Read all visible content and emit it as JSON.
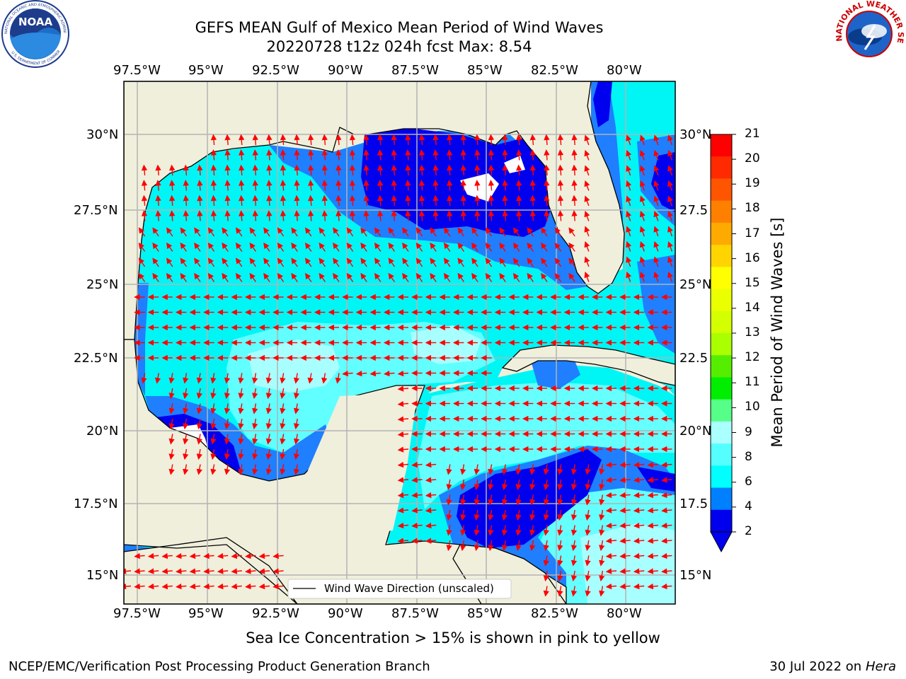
{
  "title_line1": "GEFS MEAN Gulf of Mexico Mean Period of Wind Waves",
  "title_line2": "20220728 t12z 024h fcst   Max: 8.54",
  "top_lon_labels": [
    "97.5°W",
    "95°W",
    "92.5°W",
    "90°W",
    "87.5°W",
    "85°W",
    "82.5°W",
    "80°W"
  ],
  "bottom_lon_labels": [
    "97.5°W",
    "95°W",
    "92.5°W",
    "90°W",
    "87.5°W",
    "85°W",
    "82.5°W",
    "80°W"
  ],
  "left_lat_labels": [
    "30°N",
    "27.5°N",
    "25°N",
    "22.5°N",
    "20°N",
    "17.5°N",
    "15°N"
  ],
  "right_lat_labels": [
    "30°N",
    "27.5",
    "25°N",
    "22.5",
    "20°N",
    "17.5",
    "15°N"
  ],
  "legend_label": "Wind Wave Direction (unscaled)",
  "colorbar": {
    "label": "Mean Period of Wind Waves [s]",
    "ticks": [
      "21",
      "20",
      "19",
      "18",
      "17",
      "16",
      "15",
      "14",
      "13",
      "12",
      "11",
      "10",
      "9",
      "8",
      "6",
      "4",
      "2"
    ],
    "colors": [
      "#ff0000",
      "#ff2a00",
      "#ff5500",
      "#ff8000",
      "#ffaa00",
      "#ffd400",
      "#ffff00",
      "#eaff00",
      "#d4ff00",
      "#aaff00",
      "#55ee00",
      "#00ee00",
      "#55ff88",
      "#aaffff",
      "#55ffff",
      "#00ffff",
      "#0080ff",
      "#0000ee"
    ]
  },
  "colors": {
    "land": "#efefdc",
    "deep_blue": "#0000ee",
    "mid_blue": "#1f7fff",
    "cyan": "#00f5f5",
    "light_cyan": "#66ffff",
    "pale_cyan": "#a8ffff",
    "arrow": "#ff0000"
  },
  "note": "Sea Ice Concentration > 15% is shown in pink to yellow",
  "footer_left": "NCEP/EMC/Verification Post Processing Product Generation Branch",
  "footer_right_date": "30 Jul 2022 on ",
  "footer_right_host": "Hera",
  "logos": {
    "left": "NOAA",
    "left_ring": "NATIONAL OCEANIC AND ATMOSPHERIC ADMINISTRATION",
    "left_ring_bottom": "U.S. DEPARTMENT OF COMMERCE",
    "right_ring": "NATIONAL WEATHER SERVICE"
  }
}
